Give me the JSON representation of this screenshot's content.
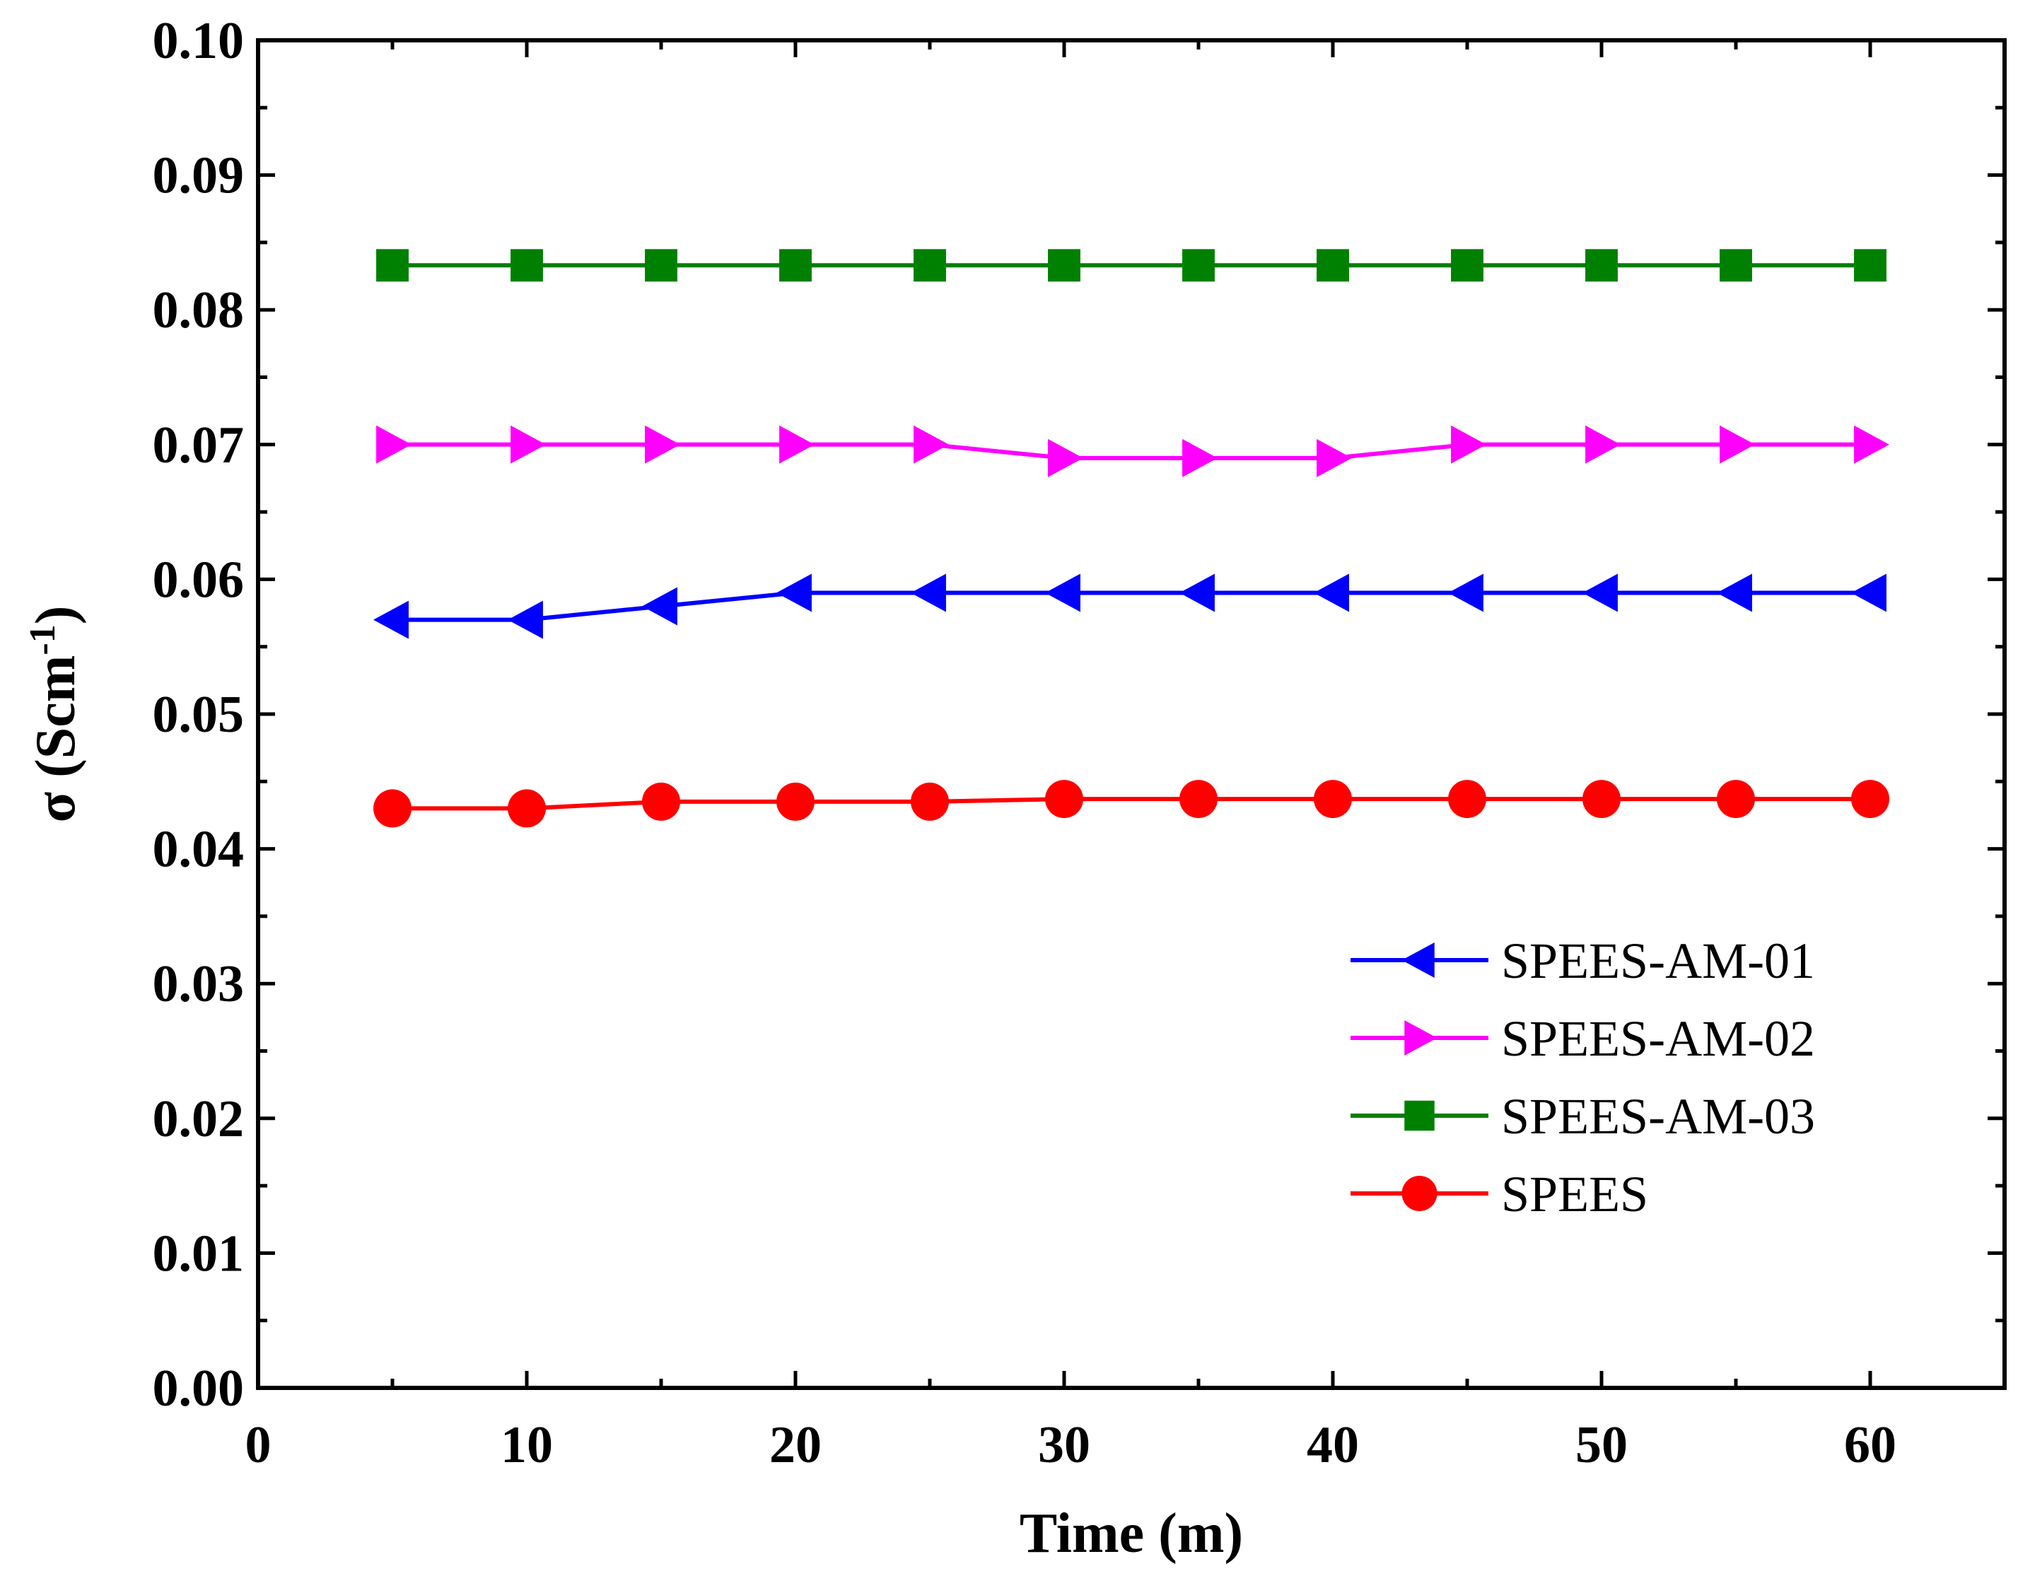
{
  "chart_data": {
    "type": "line",
    "title": "",
    "xlabel": "Time (m)",
    "ylabel": "σ (Scm-1)",
    "ylabel_parts": {
      "prefix": "σ (Scm",
      "superscript": "-1",
      "suffix": ")"
    },
    "xlim": [
      0,
      65
    ],
    "ylim": [
      0.0,
      0.1
    ],
    "x_ticks": [
      0,
      10,
      20,
      30,
      40,
      50,
      60
    ],
    "x_tick_labels": [
      "0",
      "10",
      "20",
      "30",
      "40",
      "50",
      "60"
    ],
    "y_ticks": [
      0.0,
      0.01,
      0.02,
      0.03,
      0.04,
      0.05,
      0.06,
      0.07,
      0.08,
      0.09,
      0.1
    ],
    "y_tick_labels": [
      "0.00",
      "0.01",
      "0.02",
      "0.03",
      "0.04",
      "0.05",
      "0.06",
      "0.07",
      "0.08",
      "0.09",
      "0.10"
    ],
    "grid": false,
    "legend_position": "lower-right",
    "x": [
      5,
      10,
      15,
      20,
      25,
      30,
      35,
      40,
      45,
      50,
      55,
      60
    ],
    "series": [
      {
        "name": "SPEES-AM-01",
        "color": "#0000ff",
        "marker": "triangle-left",
        "values": [
          0.057,
          0.057,
          0.058,
          0.059,
          0.059,
          0.059,
          0.059,
          0.059,
          0.059,
          0.059,
          0.059,
          0.059
        ]
      },
      {
        "name": "SPEES-AM-02",
        "color": "#ff00ff",
        "marker": "triangle-right",
        "values": [
          0.07,
          0.07,
          0.07,
          0.07,
          0.07,
          0.069,
          0.069,
          0.069,
          0.07,
          0.07,
          0.07,
          0.07
        ]
      },
      {
        "name": "SPEES-AM-03",
        "color": "#008000",
        "marker": "square",
        "values": [
          0.0833,
          0.0833,
          0.0833,
          0.0833,
          0.0833,
          0.0833,
          0.0833,
          0.0833,
          0.0833,
          0.0833,
          0.0833,
          0.0833
        ]
      },
      {
        "name": "SPEES",
        "color": "#ff0000",
        "marker": "circle",
        "values": [
          0.043,
          0.043,
          0.0435,
          0.0435,
          0.0435,
          0.0437,
          0.0437,
          0.0437,
          0.0437,
          0.0437,
          0.0437,
          0.0437
        ]
      }
    ]
  }
}
